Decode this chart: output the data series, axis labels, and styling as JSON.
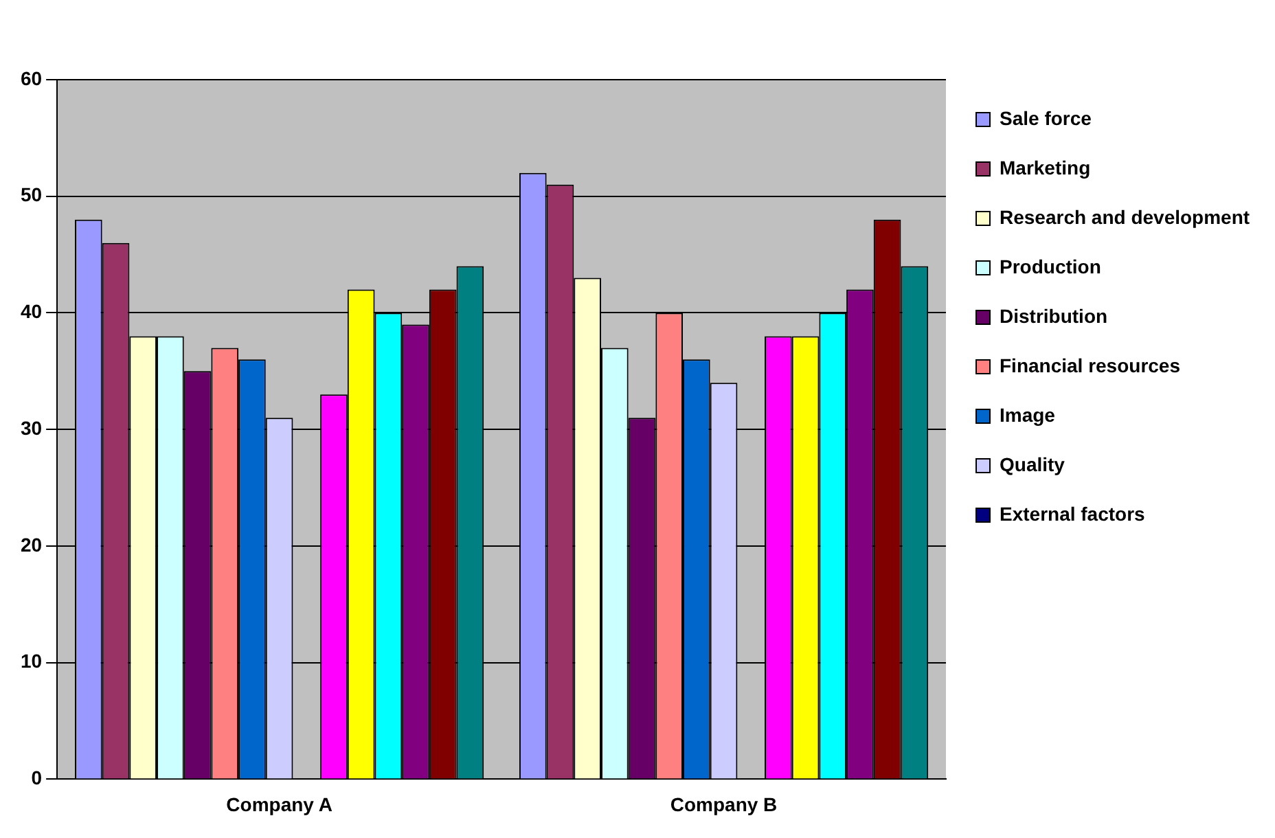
{
  "chart_data": {
    "type": "bar",
    "categories": [
      "Company A",
      "Company B"
    ],
    "series": [
      {
        "name": "Sale force",
        "color": "#9999ff",
        "values": [
          48,
          52
        ]
      },
      {
        "name": "Marketing",
        "color": "#993366",
        "values": [
          46,
          51
        ]
      },
      {
        "name": "Research and development",
        "color": "#ffffcc",
        "values": [
          38,
          43
        ]
      },
      {
        "name": "Production",
        "color": "#ccffff",
        "values": [
          38,
          37
        ]
      },
      {
        "name": "Distribution",
        "color": "#660066",
        "values": [
          35,
          31
        ]
      },
      {
        "name": "Financial resources",
        "color": "#ff8080",
        "values": [
          37,
          40
        ]
      },
      {
        "name": "Image",
        "color": "#0066cc",
        "values": [
          36,
          36
        ]
      },
      {
        "name": "Quality",
        "color": "#ccccff",
        "values": [
          31,
          34
        ]
      },
      {
        "name": "External factors",
        "color": "#000080",
        "values": [
          0,
          0
        ]
      },
      {
        "color": "#ff00ff",
        "values": [
          33,
          38
        ]
      },
      {
        "color": "#ffff00",
        "values": [
          42,
          38
        ]
      },
      {
        "color": "#00ffff",
        "values": [
          40,
          40
        ]
      },
      {
        "color": "#800080",
        "values": [
          39,
          42
        ]
      },
      {
        "color": "#800000",
        "values": [
          42,
          48
        ]
      },
      {
        "color": "#008080",
        "values": [
          44,
          44
        ]
      }
    ],
    "ylim": [
      0,
      60
    ],
    "yticks": [
      0,
      10,
      20,
      30,
      40,
      50,
      60
    ],
    "grid": "y",
    "legend": "right"
  }
}
